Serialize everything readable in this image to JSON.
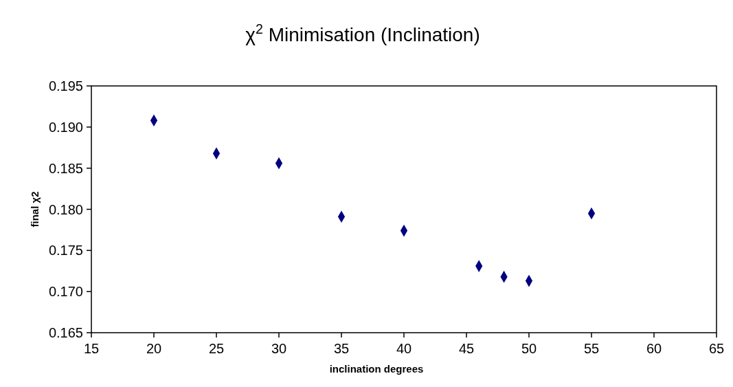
{
  "chart_data": {
    "type": "scatter",
    "title": "χ$^{2}$ Minimisation (Inclination)",
    "xlabel": "inclination degrees",
    "ylabel": "final χ2",
    "x": [
      20,
      25,
      30,
      35,
      40,
      46,
      48,
      50,
      55
    ],
    "series": [
      {
        "color": "#000080",
        "values": [
          0.1908,
          0.1868,
          0.1856,
          0.1791,
          0.1774,
          0.1731,
          0.1718,
          0.1713,
          0.1795
        ]
      }
    ],
    "xlim": [
      15,
      65
    ],
    "xticks": [
      15,
      20,
      25,
      30,
      35,
      40,
      45,
      50,
      55,
      60,
      65
    ],
    "ylim": [
      0.165,
      0.195
    ],
    "yticks": [
      {
        "value": 0.165,
        "label": "0.165"
      },
      {
        "value": 0.17,
        "label": "0.170"
      },
      {
        "value": 0.175,
        "label": "0.175"
      },
      {
        "value": 0.18,
        "label": "0.180"
      },
      {
        "value": 0.185,
        "label": "0.185"
      },
      {
        "value": 0.19,
        "label": "0.190"
      },
      {
        "value": 0.195,
        "label": "0.195"
      }
    ],
    "marker": "diamond"
  }
}
